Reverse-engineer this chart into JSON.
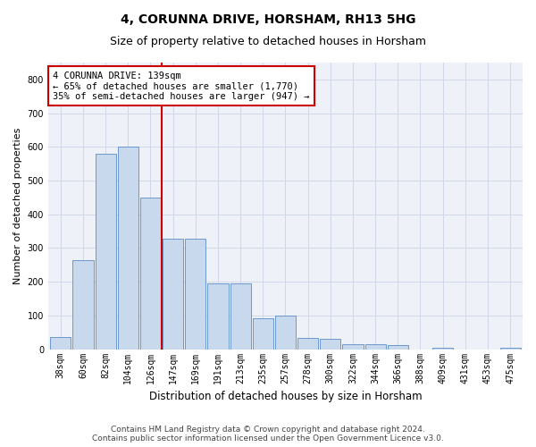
{
  "title": "4, CORUNNA DRIVE, HORSHAM, RH13 5HG",
  "subtitle": "Size of property relative to detached houses in Horsham",
  "xlabel": "Distribution of detached houses by size in Horsham",
  "ylabel": "Number of detached properties",
  "categories": [
    "38sqm",
    "60sqm",
    "82sqm",
    "104sqm",
    "126sqm",
    "147sqm",
    "169sqm",
    "191sqm",
    "213sqm",
    "235sqm",
    "257sqm",
    "278sqm",
    "300sqm",
    "322sqm",
    "344sqm",
    "366sqm",
    "388sqm",
    "409sqm",
    "431sqm",
    "453sqm",
    "475sqm"
  ],
  "values": [
    35,
    265,
    580,
    600,
    450,
    328,
    328,
    195,
    195,
    92,
    100,
    33,
    30,
    16,
    15,
    11,
    0,
    5,
    0,
    0,
    5
  ],
  "bar_color": "#c8d8ed",
  "bar_edge_color": "#5b8cc8",
  "vline_color": "#cc0000",
  "vline_pos": 4.5,
  "annotation_text": "4 CORUNNA DRIVE: 139sqm\n← 65% of detached houses are smaller (1,770)\n35% of semi-detached houses are larger (947) →",
  "ylim": [
    0,
    850
  ],
  "yticks": [
    0,
    100,
    200,
    300,
    400,
    500,
    600,
    700,
    800
  ],
  "grid_color": "#d0d8e8",
  "bg_color": "#eef2f8",
  "footer": "Contains HM Land Registry data © Crown copyright and database right 2024.\nContains public sector information licensed under the Open Government Licence v3.0.",
  "title_fontsize": 10,
  "subtitle_fontsize": 9,
  "xlabel_fontsize": 8.5,
  "ylabel_fontsize": 8,
  "tick_fontsize": 7,
  "footer_fontsize": 6.5,
  "annot_fontsize": 7.5
}
